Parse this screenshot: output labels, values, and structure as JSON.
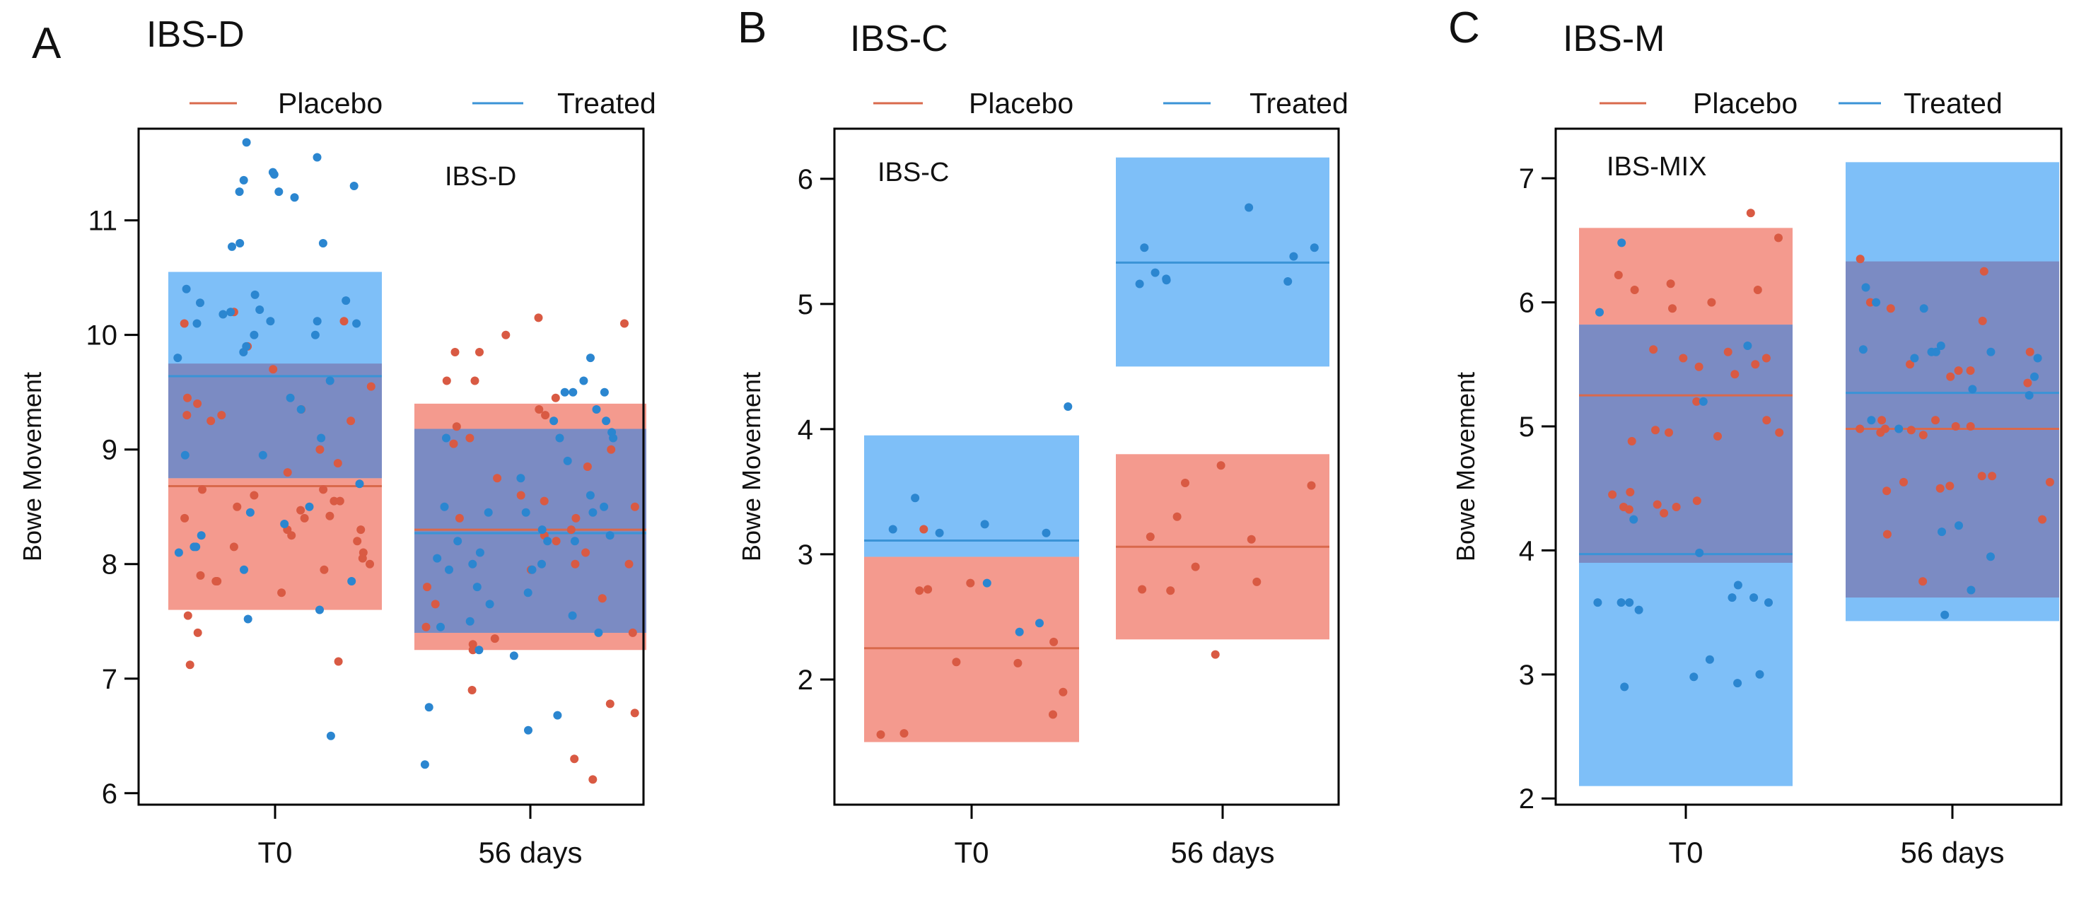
{
  "colors": {
    "placebo_band": "#f49a8e",
    "treated_band": "#7ebff8",
    "overlap_band": "#7b8bc3",
    "placebo_line": "#d9694c",
    "treated_line": "#3a93d6",
    "placebo_dot": "#d95a43",
    "treated_dot": "#2b86d0"
  },
  "chart_data": [
    {
      "panel": "A",
      "type": "scatter",
      "title": "IBS-D",
      "inset_label": "IBS-D",
      "xlabel": "",
      "ylabel": "Bowe Movement",
      "categories": [
        "T0",
        "56 days"
      ],
      "ylim": [
        5.9,
        11.8
      ],
      "yticks": [
        6,
        7,
        8,
        9,
        10,
        11
      ],
      "legend": [
        "Placebo",
        "Treated"
      ],
      "legend_position": "top",
      "series": [
        {
          "name": "Placebo",
          "summary": [
            {
              "category": "T0",
              "mean": 8.68,
              "low": 7.6,
              "high": 9.75
            },
            {
              "category": "56 days",
              "mean": 8.3,
              "low": 7.25,
              "high": 9.4
            }
          ],
          "points": {
            "T0": [
              8.88,
              9.4,
              8.55,
              8.47,
              8.42,
              8.3,
              8.0,
              8.2,
              7.15,
              8.1,
              7.95,
              8.4,
              7.85,
              8.3,
              7.9,
              8.55,
              9.25,
              7.12,
              8.05,
              7.85,
              9.0,
              7.4,
              8.6,
              10.12,
              9.3,
              7.75,
              8.25,
              9.7,
              9.45,
              7.55,
              8.15,
              9.35,
              8.4,
              9.9,
              8.65,
              10.1,
              9.55,
              9.3,
              8.5,
              9.25,
              8.65,
              8.8,
              10.2
            ],
            "56 days": [
              8.0,
              9.0,
              8.55,
              7.3,
              9.6,
              10.0,
              9.05,
              7.95,
              8.4,
              9.3,
              7.65,
              10.15,
              8.3,
              9.85,
              7.4,
              9.85,
              8.85,
              10.1,
              8.0,
              9.35,
              8.5,
              9.2,
              7.45,
              7.8,
              8.75,
              8.6,
              8.1,
              9.45,
              8.25,
              9.6,
              7.7,
              8.4,
              6.7,
              6.9,
              7.35,
              6.12,
              8.2,
              6.78,
              6.3,
              9.1,
              7.25
            ]
          }
        },
        {
          "name": "Treated",
          "summary": [
            {
              "category": "T0",
              "mean": 9.64,
              "low": 8.75,
              "high": 10.55
            },
            {
              "category": "56 days",
              "mean": 8.27,
              "low": 7.4,
              "high": 9.18
            }
          ],
          "points": {
            "T0": [
              11.68,
              7.95,
              7.52,
              8.95,
              8.5,
              10.77,
              11.25,
              11.55,
              10.22,
              8.1,
              8.15,
              7.6,
              10.18,
              9.35,
              10.0,
              10.28,
              8.25,
              10.1,
              9.1,
              8.45,
              10.12,
              8.95,
              10.2,
              11.4,
              10.8,
              9.9,
              8.15,
              10.1,
              9.85,
              10.3,
              11.42,
              10.4,
              9.8,
              10.0,
              11.35,
              9.6,
              10.12,
              10.35,
              10.8,
              11.3,
              11.25,
              11.2,
              9.45,
              6.5,
              8.7,
              7.85,
              8.35
            ],
            "56 days": [
              6.68,
              6.75,
              6.25,
              6.55,
              8.9,
              9.5,
              9.25,
              8.5,
              7.25,
              8.0,
              9.25,
              8.2,
              7.8,
              8.45,
              9.1,
              7.95,
              8.1,
              8.45,
              7.5,
              9.1,
              8.2,
              9.5,
              8.0,
              7.55,
              9.15,
              9.8,
              8.3,
              7.45,
              8.6,
              8.05,
              9.35,
              7.65,
              8.5,
              9.6,
              7.95,
              8.25,
              7.4,
              9.1,
              8.2,
              8.45,
              7.75,
              9.5,
              7.2,
              8.75
            ]
          }
        }
      ]
    },
    {
      "panel": "B",
      "type": "scatter",
      "title": "IBS-C",
      "inset_label": "IBS-C",
      "xlabel": "",
      "ylabel": "Bowe Movement",
      "categories": [
        "T0",
        "56 days"
      ],
      "ylim": [
        1.0,
        6.4
      ],
      "yticks": [
        2,
        3,
        4,
        5,
        6
      ],
      "legend": [
        "Placebo",
        "Treated"
      ],
      "legend_position": "top",
      "series": [
        {
          "name": "Placebo",
          "summary": [
            {
              "category": "T0",
              "mean": 2.25,
              "low": 1.5,
              "high": 2.98
            },
            {
              "category": "56 days",
              "mean": 3.06,
              "low": 2.32,
              "high": 3.8
            }
          ],
          "points": {
            "T0": [
              3.2,
              1.9,
              1.57,
              1.72,
              1.56,
              2.71,
              2.77,
              2.13,
              2.3,
              2.14,
              2.72
            ],
            "56 days": [
              2.2,
              2.9,
              3.57,
              3.71,
              3.55,
              2.71,
              2.78,
              3.12,
              3.3,
              3.14,
              2.72
            ]
          }
        },
        {
          "name": "Treated",
          "summary": [
            {
              "category": "T0",
              "mean": 3.11,
              "low": 2.98,
              "high": 3.95
            },
            {
              "category": "56 days",
              "mean": 5.33,
              "low": 4.5,
              "high": 6.17
            }
          ],
          "points": {
            "T0": [
              2.77,
              3.17,
              3.45,
              3.17,
              3.24,
              2.45,
              3.2,
              4.18,
              2.38
            ],
            "56 days": [
              5.77,
              5.16,
              5.45,
              5.18,
              5.25,
              5.45,
              5.2,
              5.19,
              5.38
            ]
          }
        }
      ]
    },
    {
      "panel": "C",
      "type": "scatter",
      "title": "IBS-M",
      "inset_label": "IBS-MIX",
      "xlabel": "",
      "ylabel": "Bowe Movement",
      "categories": [
        "T0",
        "56 days"
      ],
      "ylim": [
        1.95,
        7.4
      ],
      "yticks": [
        2,
        3,
        4,
        5,
        6,
        7
      ],
      "legend": [
        "Placebo",
        "Treated"
      ],
      "legend_position": "top",
      "series": [
        {
          "name": "Placebo",
          "summary": [
            {
              "category": "T0",
              "mean": 5.25,
              "low": 3.9,
              "high": 6.6
            },
            {
              "category": "56 days",
              "mean": 4.98,
              "low": 3.62,
              "high": 6.33
            }
          ],
          "points": {
            "T0": [
              5.55,
              4.97,
              5.05,
              4.47,
              4.95,
              5.5,
              4.45,
              5.55,
              4.37,
              6.1,
              5.62,
              6.15,
              4.92,
              6.1,
              4.35,
              4.88,
              5.6,
              4.95,
              5.48,
              5.42,
              4.35,
              5.95,
              4.33,
              6.0,
              4.3,
              6.52,
              5.2,
              4.4,
              6.22,
              6.72
            ],
            "56 days": [
              4.55,
              4.98,
              5.05,
              4.93,
              5.45,
              4.52,
              4.55,
              4.97,
              4.6,
              5.85,
              4.13,
              5.4,
              4.6,
              5.5,
              4.48,
              4.95,
              6.0,
              5.45,
              5.05,
              6.35,
              5.6,
              5.35,
              4.5,
              6.25,
              5.0,
              5.95,
              4.98,
              4.25,
              5.0,
              3.75
            ]
          }
        },
        {
          "name": "Treated",
          "summary": [
            {
              "category": "T0",
              "mean": 3.97,
              "low": 2.1,
              "high": 5.82
            },
            {
              "category": "56 days",
              "mean": 5.27,
              "low": 3.43,
              "high": 7.13
            }
          ],
          "points": {
            "T0": [
              3.52,
              6.48,
              2.9,
              3.58,
              3.12,
              5.65,
              2.93,
              4.25,
              5.92,
              3.62,
              3.62,
              2.98,
              3.58,
              3.72,
              3.0,
              3.98,
              3.58,
              3.58,
              5.2
            ],
            "56 days": [
              5.55,
              5.95,
              3.48,
              5.4,
              6.12,
              3.68,
              5.3,
              5.55,
              5.65,
              3.95,
              4.15,
              5.62,
              6.0,
              5.05,
              5.25,
              5.6,
              4.2,
              4.98,
              5.6,
              5.6
            ]
          }
        }
      ]
    }
  ]
}
